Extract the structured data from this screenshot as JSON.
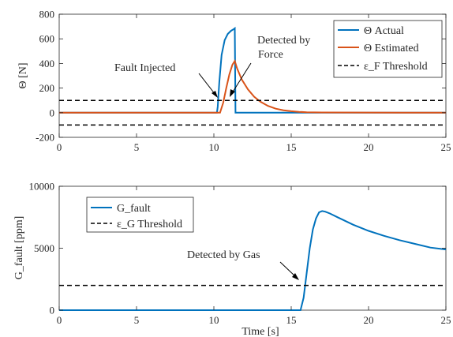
{
  "chart_data": [
    {
      "type": "line",
      "ylabel": "Θ [N]",
      "xlim": [
        0,
        25
      ],
      "ylim": [
        -200,
        800
      ],
      "x_ticks": [
        0,
        5,
        10,
        15,
        20,
        25
      ],
      "y_ticks": [
        -200,
        0,
        200,
        400,
        600,
        800
      ],
      "grid": false,
      "legend_position": "top-right",
      "series": [
        {
          "name": "Θ Actual",
          "color": "#0072BD",
          "style": "solid",
          "x": [
            0,
            10.2,
            10.25,
            10.35,
            10.5,
            10.7,
            10.9,
            11.1,
            11.3,
            11.35,
            11.4,
            25
          ],
          "y": [
            0,
            0,
            50,
            250,
            470,
            590,
            640,
            665,
            680,
            685,
            0,
            0
          ]
        },
        {
          "name": "Θ Estimated",
          "color": "#D95319",
          "style": "solid",
          "x": [
            0,
            10.4,
            10.6,
            10.8,
            11.0,
            11.2,
            11.35,
            11.5,
            11.8,
            12.2,
            12.6,
            13.0,
            13.5,
            14.0,
            14.5,
            15.0,
            15.5,
            16.0,
            17.0,
            25
          ],
          "y": [
            0,
            0,
            80,
            200,
            310,
            390,
            420,
            360,
            270,
            190,
            130,
            90,
            55,
            33,
            20,
            12,
            7,
            4,
            2,
            0
          ]
        },
        {
          "name": "ε_F Threshold",
          "color": "#000000",
          "style": "dashed",
          "x": [
            0,
            25
          ],
          "y": [
            100,
            100
          ]
        },
        {
          "name": "",
          "color": "#000000",
          "style": "dashed",
          "x": [
            0,
            25
          ],
          "y": [
            -100,
            -100
          ]
        }
      ],
      "annotations": [
        {
          "text": "Fault Injected",
          "arrow_to": [
            10.3,
            100
          ]
        },
        {
          "text": "Detected by",
          "text2": "Force",
          "arrow_to": [
            11.0,
            120
          ]
        }
      ]
    },
    {
      "type": "line",
      "xlabel": "Time [s]",
      "ylabel": "G_fault [ppm]",
      "xlim": [
        0,
        25
      ],
      "ylim": [
        0,
        10000
      ],
      "x_ticks": [
        0,
        5,
        10,
        15,
        20,
        25
      ],
      "y_ticks": [
        0,
        5000,
        10000
      ],
      "grid": false,
      "legend_position": "top-left",
      "series": [
        {
          "name": "G_fault",
          "color": "#0072BD",
          "style": "solid",
          "x": [
            0,
            15.6,
            15.8,
            16.0,
            16.2,
            16.4,
            16.6,
            16.8,
            17.0,
            17.2,
            17.5,
            18,
            19,
            20,
            21,
            22,
            23,
            24,
            25
          ],
          "y": [
            0,
            0,
            1000,
            3000,
            5000,
            6500,
            7400,
            7900,
            8000,
            7950,
            7800,
            7500,
            6900,
            6400,
            6000,
            5650,
            5350,
            5050,
            4900
          ]
        },
        {
          "name": "ε_G Threshold",
          "color": "#000000",
          "style": "dashed",
          "x": [
            0,
            25
          ],
          "y": [
            2000,
            2000
          ]
        }
      ],
      "annotations": [
        {
          "text": "Detected by Gas",
          "arrow_to": [
            15.8,
            2100
          ]
        }
      ]
    }
  ]
}
